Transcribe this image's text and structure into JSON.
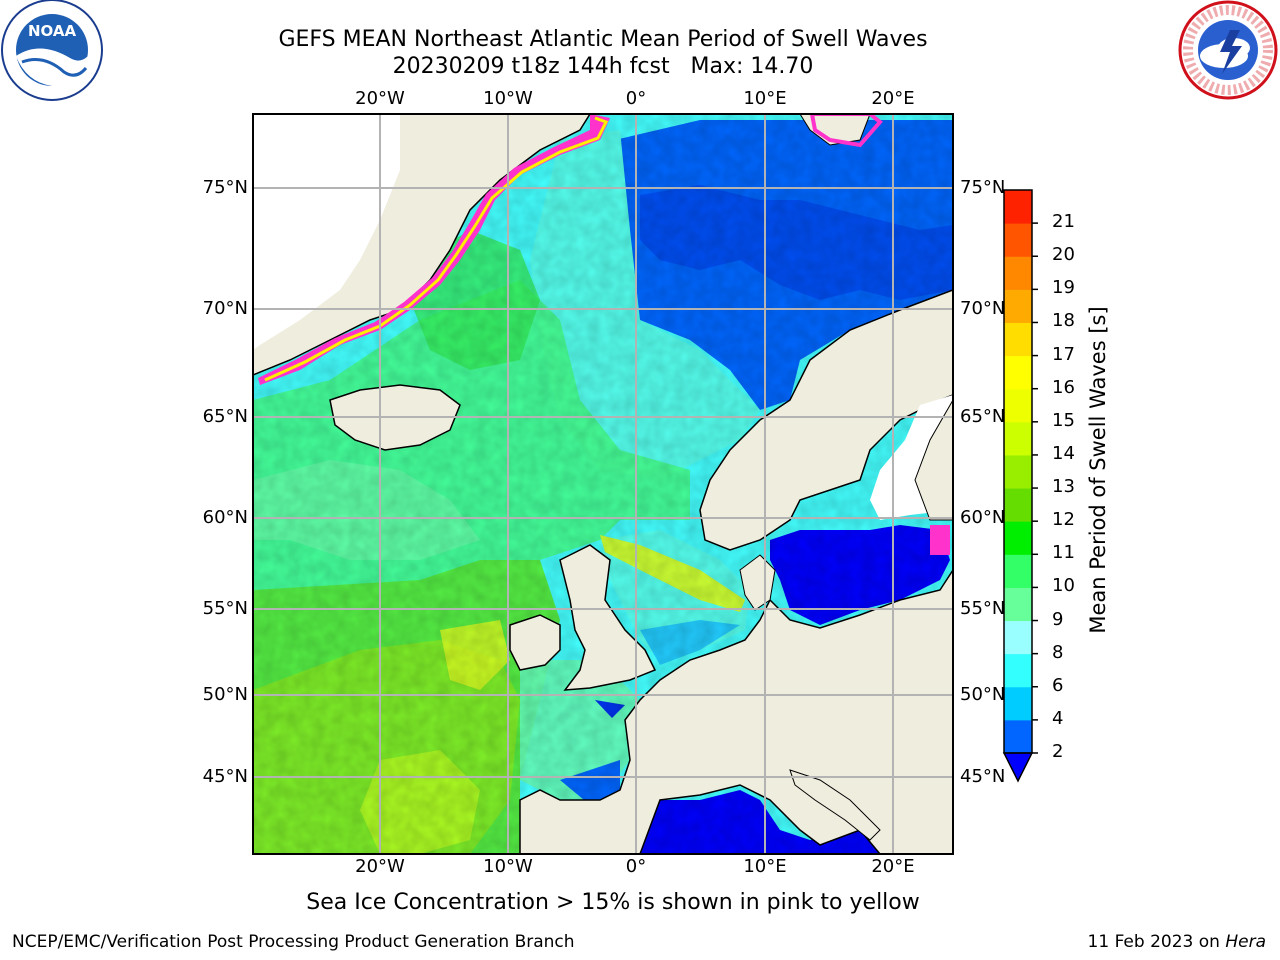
{
  "header": {
    "title_line1": "GEFS MEAN Northeast Atlantic Mean Period of Swell Waves",
    "title_line2": "20230209 t18z 144h fcst   Max: 14.70"
  },
  "logos": {
    "left": "noaa-logo",
    "right": "nws-logo",
    "left_text": "NOAA",
    "right_ring_text": "NATIONAL WEATHER SERVICE"
  },
  "map": {
    "lon_labels": [
      "20°W",
      "10°W",
      "0°",
      "10°E",
      "20°E"
    ],
    "lat_labels": [
      "75°N",
      "70°N",
      "65°N",
      "60°N",
      "55°N",
      "50°N",
      "45°N"
    ],
    "colors": {
      "land": "#efedde",
      "ice_free_water_unknown": "#ffffff",
      "grid": "#b3b3b3",
      "coast": "#000000",
      "sea_ice": "#ff33cc"
    }
  },
  "colorbar": {
    "title": "Mean Period of Swell Waves [s]",
    "ticks": [
      "2",
      "4",
      "6",
      "8",
      "9",
      "10",
      "11",
      "12",
      "13",
      "14",
      "15",
      "16",
      "17",
      "18",
      "19",
      "20",
      "21"
    ],
    "colors": [
      "#0066ff",
      "#00ccff",
      "#33ffff",
      "#99ffff",
      "#66ff99",
      "#33ff66",
      "#00ee00",
      "#66dd00",
      "#99ee00",
      "#ccff00",
      "#eeff00",
      "#ffff00",
      "#ffdd00",
      "#ffaa00",
      "#ff8800",
      "#ff5500",
      "#ff2200",
      "#ff0000"
    ],
    "under_color": "#0000ff"
  },
  "footer": {
    "note": "Sea Ice Concentration > 15% is shown in pink to yellow",
    "credit": "NCEP/EMC/Verification Post Processing Product Generation Branch",
    "date": "11 Feb 2023 on ",
    "host": "Hera"
  }
}
